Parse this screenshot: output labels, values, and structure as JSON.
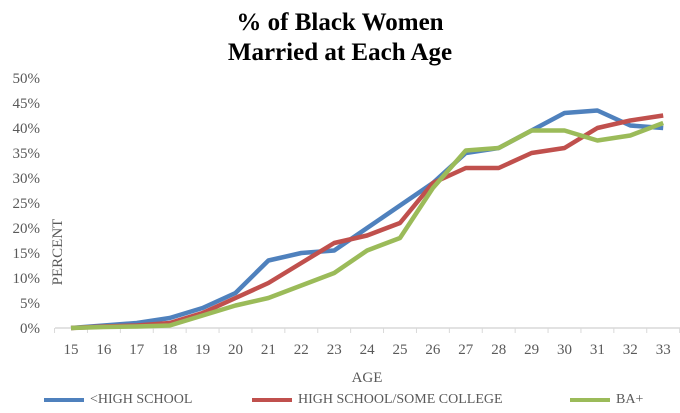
{
  "chart_data": {
    "type": "line",
    "title": "% of Black Women Married at Each Age",
    "title_lines": [
      "% of Black Women",
      "Married at Each Age"
    ],
    "xlabel": "AGE",
    "ylabel": "PERCENT",
    "x": [
      15,
      16,
      17,
      18,
      19,
      20,
      21,
      22,
      23,
      24,
      25,
      26,
      27,
      28,
      29,
      30,
      31,
      32,
      33
    ],
    "ylim": [
      0,
      50
    ],
    "yticks": [
      "0%",
      "5%",
      "10%",
      "15%",
      "20%",
      "25%",
      "30%",
      "35%",
      "40%",
      "45%",
      "50%"
    ],
    "grid": false,
    "legend_position": "bottom",
    "series": [
      {
        "name": "<HIGH SCHOOL",
        "color": "#4f81bd",
        "values": [
          0,
          0.5,
          1,
          2,
          4,
          7,
          13.5,
          15,
          15.5,
          20,
          24.5,
          29,
          35,
          36,
          39.5,
          43,
          43.5,
          40.5,
          40
        ]
      },
      {
        "name": "HIGH SCHOOL/SOME COLLEGE",
        "color": "#c0504d",
        "values": [
          0,
          0.3,
          0.5,
          1,
          3,
          6,
          9,
          13,
          17,
          18.5,
          21,
          29,
          32,
          32,
          35,
          36,
          40,
          41.5,
          42.5
        ]
      },
      {
        "name": "BA+",
        "color": "#9bbb59",
        "values": [
          0,
          0.2,
          0.3,
          0.5,
          2.5,
          4.5,
          6,
          8.5,
          11,
          15.5,
          18,
          28,
          35.5,
          36,
          39.5,
          39.5,
          37.5,
          38.5,
          41
        ]
      }
    ]
  }
}
